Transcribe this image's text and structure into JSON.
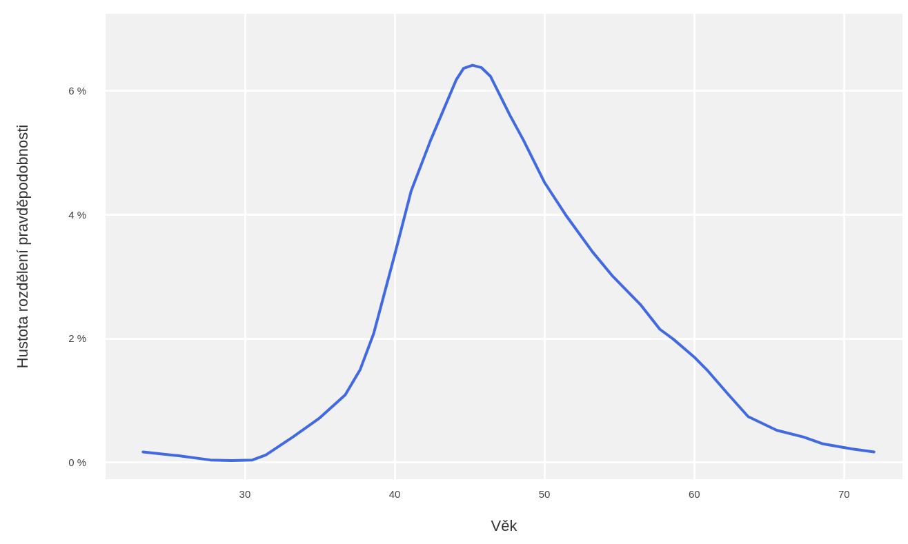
{
  "chart_data": {
    "type": "line",
    "xlabel": "Věk",
    "ylabel": "Hustota rozdělení pravděpodobnosti",
    "xlim": [
      20.7,
      73.9
    ],
    "xticks": [
      30,
      40,
      50,
      60,
      70
    ],
    "ylim": [
      -0.27,
      7.24
    ],
    "yticks": [
      {
        "value": 0,
        "label": "0 %"
      },
      {
        "value": 2,
        "label": "2 %"
      },
      {
        "value": 4,
        "label": "4 %"
      },
      {
        "value": 6,
        "label": "6 %"
      }
    ],
    "grid": true,
    "marker": "none",
    "line_style": "solid",
    "x": [
      23.2,
      25.5,
      27.7,
      29.1,
      30.5,
      31.4,
      33.2,
      35.0,
      36.7,
      37.7,
      38.6,
      40.0,
      41.1,
      42.4,
      44.1,
      44.6,
      45.2,
      45.8,
      46.4,
      47.7,
      48.6,
      50.0,
      51.4,
      53.2,
      54.5,
      56.4,
      57.7,
      58.6,
      60.0,
      60.9,
      62.3,
      63.6,
      65.5,
      67.3,
      68.6,
      70.5,
      72.0
    ],
    "series": [
      {
        "color": "#4169e1",
        "values": [
          0.17,
          0.11,
          0.04,
          0.03,
          0.04,
          0.12,
          0.41,
          0.72,
          1.09,
          1.5,
          2.08,
          3.35,
          4.38,
          5.2,
          6.17,
          6.36,
          6.41,
          6.37,
          6.23,
          5.6,
          5.2,
          4.52,
          4.0,
          3.4,
          3.02,
          2.55,
          2.15,
          1.99,
          1.7,
          1.48,
          1.09,
          0.74,
          0.52,
          0.41,
          0.3,
          0.22,
          0.17
        ]
      }
    ]
  }
}
